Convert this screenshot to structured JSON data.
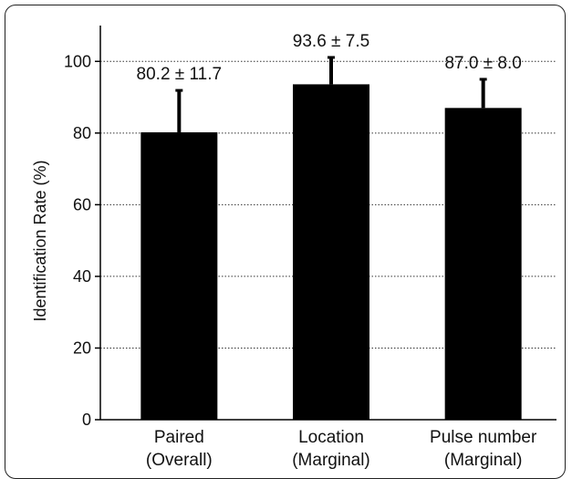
{
  "chart_data": {
    "type": "bar",
    "ylabel": "Identification Rate (%)",
    "ylim": [
      0,
      110
    ],
    "yticks": [
      "0",
      "20",
      "40",
      "60",
      "80",
      "100"
    ],
    "grid": "horizontal dotted",
    "bar_color": "#000000",
    "categories": [
      {
        "line1": "Paired",
        "line2": "(Overall)"
      },
      {
        "line1": "Location",
        "line2": "(Marginal)"
      },
      {
        "line1": "Pulse number",
        "line2": "(Marginal)"
      }
    ],
    "values": [
      80.2,
      93.6,
      87.0
    ],
    "errors": [
      11.7,
      7.5,
      8.0
    ],
    "data_labels": [
      "80.2 ± 11.7",
      "93.6 ± 7.5",
      "87.0 ± 8.0"
    ]
  }
}
